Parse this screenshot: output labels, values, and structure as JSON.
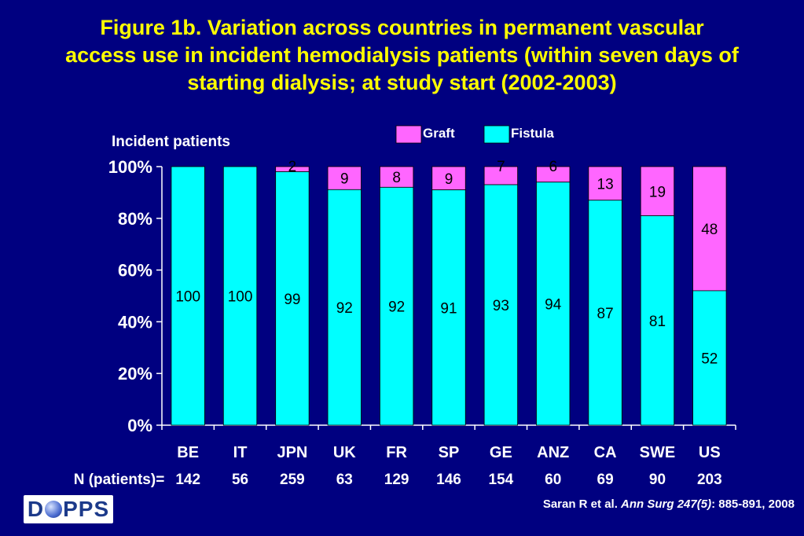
{
  "title_lines": [
    "Figure 1b. Variation across countries in permanent vascular",
    "access use in incident hemodialysis patients (within seven days of",
    "starting dialysis; at study start (2002-2003)"
  ],
  "footer": {
    "logo_text": "DOPPS",
    "citation_prefix": "Saran R et al. ",
    "citation_journal": "Ann Surg 247(5)",
    "citation_suffix": ": 885-891, 2008"
  },
  "colors": {
    "background": "#000080",
    "title": "#ffff00",
    "fistula": "#00ffff",
    "graft": "#ff66ff",
    "axis_text": "#ffffff"
  },
  "chart_data": {
    "type": "bar",
    "stacked": true,
    "ylabel": "Incident patients",
    "ylim": [
      0,
      100
    ],
    "yticks": [
      "0%",
      "20%",
      "40%",
      "60%",
      "80%",
      "100%"
    ],
    "categories": [
      "BE",
      "IT",
      "JPN",
      "UK",
      "FR",
      "SP",
      "GE",
      "ANZ",
      "CA",
      "SWE",
      "US"
    ],
    "series": [
      {
        "name": "Fistula",
        "values": [
          100,
          100,
          99,
          92,
          92,
          91,
          93,
          94,
          87,
          81,
          52
        ],
        "labels": [
          "100",
          "100",
          "99",
          "92",
          "92",
          "91",
          "93",
          "94",
          "87",
          "81",
          "52"
        ]
      },
      {
        "name": "Graft",
        "values": [
          0,
          0,
          2,
          9,
          8,
          9,
          7,
          6,
          13,
          19,
          48
        ],
        "labels": [
          "",
          "",
          "2",
          "9",
          "8",
          "9",
          "7",
          "6",
          "13",
          "19",
          "48"
        ]
      }
    ],
    "n_label": "N (patients)=",
    "n_values": [
      "142",
      "56",
      "259",
      "63",
      "129",
      "146",
      "154",
      "60",
      "69",
      "90",
      "203"
    ],
    "legend": [
      "Graft",
      "Fistula"
    ],
    "legend_position": "top"
  }
}
